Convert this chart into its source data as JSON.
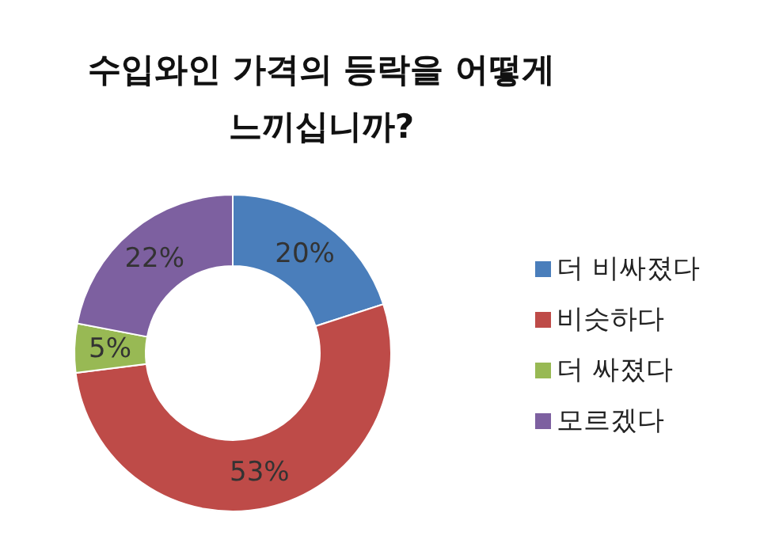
{
  "chart_data": {
    "type": "donut",
    "title": "수입와인 가격의 등락을 어떻게 느끼십니까?",
    "categories": [
      "더 비싸졌다",
      "비슷하다",
      "더 싸졌다",
      "모르겠다"
    ],
    "values": [
      20,
      53,
      5,
      22
    ],
    "colors": [
      "#4a7ebb",
      "#be4b48",
      "#98b954",
      "#7d60a0"
    ],
    "value_labels": [
      "20%",
      "53%",
      "5%",
      "22%"
    ],
    "legend": "right"
  }
}
